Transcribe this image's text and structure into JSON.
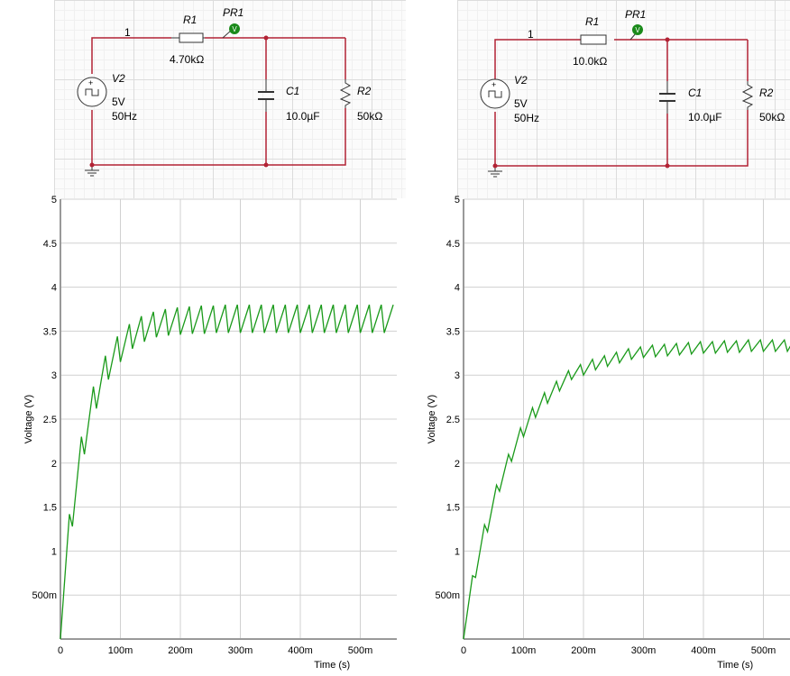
{
  "circuits": [
    {
      "node": "1",
      "r1": {
        "name": "R1",
        "value": "4.70kΩ"
      },
      "probe": {
        "name": "PR1",
        "glyph": "V"
      },
      "source": {
        "name": "V2",
        "amp": "5V",
        "freq": "50Hz"
      },
      "c1": {
        "name": "C1",
        "value": "10.0µF"
      },
      "r2": {
        "name": "R2",
        "value": "50kΩ"
      }
    },
    {
      "node": "1",
      "r1": {
        "name": "R1",
        "value": "10.0kΩ"
      },
      "probe": {
        "name": "PR1",
        "glyph": "V"
      },
      "source": {
        "name": "V2",
        "amp": "5V",
        "freq": "50Hz"
      },
      "c1": {
        "name": "C1",
        "value": "10.0µF"
      },
      "r2": {
        "name": "R2",
        "value": "50kΩ"
      }
    }
  ],
  "colors": {
    "wire": "#b22234",
    "trace": "#1a9a1a",
    "probe": "#1a8a1a",
    "grid": "#cccccc"
  },
  "chart_data": [
    {
      "type": "line",
      "title": "",
      "xlabel": "Time (s)",
      "ylabel": "Voltage (V)",
      "xlim": [
        0,
        0.555
      ],
      "ylim": [
        0,
        5
      ],
      "x_ticks": [
        "0",
        "100m",
        "200m",
        "300m",
        "400m",
        "500m"
      ],
      "y_ticks": [
        "500m",
        "1",
        "1.5",
        "2",
        "2.5",
        "3",
        "3.5",
        "4",
        "4.5",
        "5"
      ],
      "series": [
        {
          "name": "PR1",
          "points": [
            [
              0,
              0
            ],
            [
              15,
              1.42
            ],
            [
              20,
              1.28
            ],
            [
              35,
              2.3
            ],
            [
              40,
              2.1
            ],
            [
              55,
              2.87
            ],
            [
              60,
              2.62
            ],
            [
              75,
              3.22
            ],
            [
              80,
              2.95
            ],
            [
              95,
              3.44
            ],
            [
              100,
              3.15
            ],
            [
              115,
              3.58
            ],
            [
              120,
              3.3
            ],
            [
              135,
              3.67
            ],
            [
              140,
              3.38
            ],
            [
              155,
              3.72
            ],
            [
              160,
              3.43
            ],
            [
              175,
              3.75
            ],
            [
              180,
              3.45
            ],
            [
              195,
              3.77
            ],
            [
              200,
              3.46
            ],
            [
              215,
              3.78
            ],
            [
              220,
              3.47
            ],
            [
              235,
              3.79
            ],
            [
              240,
              3.47
            ],
            [
              255,
              3.79
            ],
            [
              260,
              3.48
            ],
            [
              275,
              3.8
            ],
            [
              280,
              3.48
            ],
            [
              295,
              3.8
            ],
            [
              300,
              3.48
            ],
            [
              315,
              3.8
            ],
            [
              320,
              3.48
            ],
            [
              335,
              3.8
            ],
            [
              340,
              3.48
            ],
            [
              355,
              3.8
            ],
            [
              360,
              3.48
            ],
            [
              375,
              3.8
            ],
            [
              380,
              3.48
            ],
            [
              395,
              3.8
            ],
            [
              400,
              3.48
            ],
            [
              415,
              3.8
            ],
            [
              420,
              3.48
            ],
            [
              435,
              3.8
            ],
            [
              440,
              3.48
            ],
            [
              455,
              3.8
            ],
            [
              460,
              3.48
            ],
            [
              475,
              3.8
            ],
            [
              480,
              3.48
            ],
            [
              495,
              3.8
            ],
            [
              500,
              3.48
            ],
            [
              515,
              3.8
            ],
            [
              520,
              3.48
            ],
            [
              535,
              3.8
            ],
            [
              540,
              3.48
            ],
            [
              555,
              3.8
            ]
          ]
        }
      ]
    },
    {
      "type": "line",
      "title": "",
      "xlabel": "Time (s)",
      "ylabel": "Voltage (V)",
      "xlim": [
        0,
        0.545
      ],
      "ylim": [
        0,
        5
      ],
      "x_ticks": [
        "0",
        "100m",
        "200m",
        "300m",
        "400m",
        "500m"
      ],
      "y_ticks": [
        "500m",
        "1",
        "1.5",
        "2",
        "2.5",
        "3",
        "3.5",
        "4",
        "4.5",
        "5"
      ],
      "series": [
        {
          "name": "PR1",
          "points": [
            [
              0,
              0
            ],
            [
              15,
              0.72
            ],
            [
              20,
              0.7
            ],
            [
              35,
              1.3
            ],
            [
              40,
              1.22
            ],
            [
              55,
              1.75
            ],
            [
              60,
              1.68
            ],
            [
              75,
              2.1
            ],
            [
              80,
              2.02
            ],
            [
              95,
              2.4
            ],
            [
              100,
              2.3
            ],
            [
              115,
              2.63
            ],
            [
              120,
              2.52
            ],
            [
              135,
              2.8
            ],
            [
              140,
              2.68
            ],
            [
              155,
              2.93
            ],
            [
              160,
              2.82
            ],
            [
              175,
              3.05
            ],
            [
              180,
              2.95
            ],
            [
              195,
              3.12
            ],
            [
              200,
              3.0
            ],
            [
              215,
              3.18
            ],
            [
              220,
              3.06
            ],
            [
              235,
              3.22
            ],
            [
              240,
              3.1
            ],
            [
              255,
              3.26
            ],
            [
              260,
              3.14
            ],
            [
              275,
              3.3
            ],
            [
              280,
              3.18
            ],
            [
              295,
              3.32
            ],
            [
              300,
              3.2
            ],
            [
              315,
              3.34
            ],
            [
              320,
              3.21
            ],
            [
              335,
              3.35
            ],
            [
              340,
              3.22
            ],
            [
              355,
              3.36
            ],
            [
              360,
              3.23
            ],
            [
              375,
              3.37
            ],
            [
              380,
              3.24
            ],
            [
              395,
              3.38
            ],
            [
              400,
              3.25
            ],
            [
              415,
              3.38
            ],
            [
              420,
              3.25
            ],
            [
              435,
              3.39
            ],
            [
              440,
              3.26
            ],
            [
              455,
              3.39
            ],
            [
              460,
              3.26
            ],
            [
              475,
              3.4
            ],
            [
              480,
              3.27
            ],
            [
              495,
              3.4
            ],
            [
              500,
              3.27
            ],
            [
              515,
              3.4
            ],
            [
              520,
              3.27
            ],
            [
              535,
              3.4
            ],
            [
              540,
              3.27
            ],
            [
              545,
              3.33
            ]
          ]
        }
      ]
    }
  ]
}
